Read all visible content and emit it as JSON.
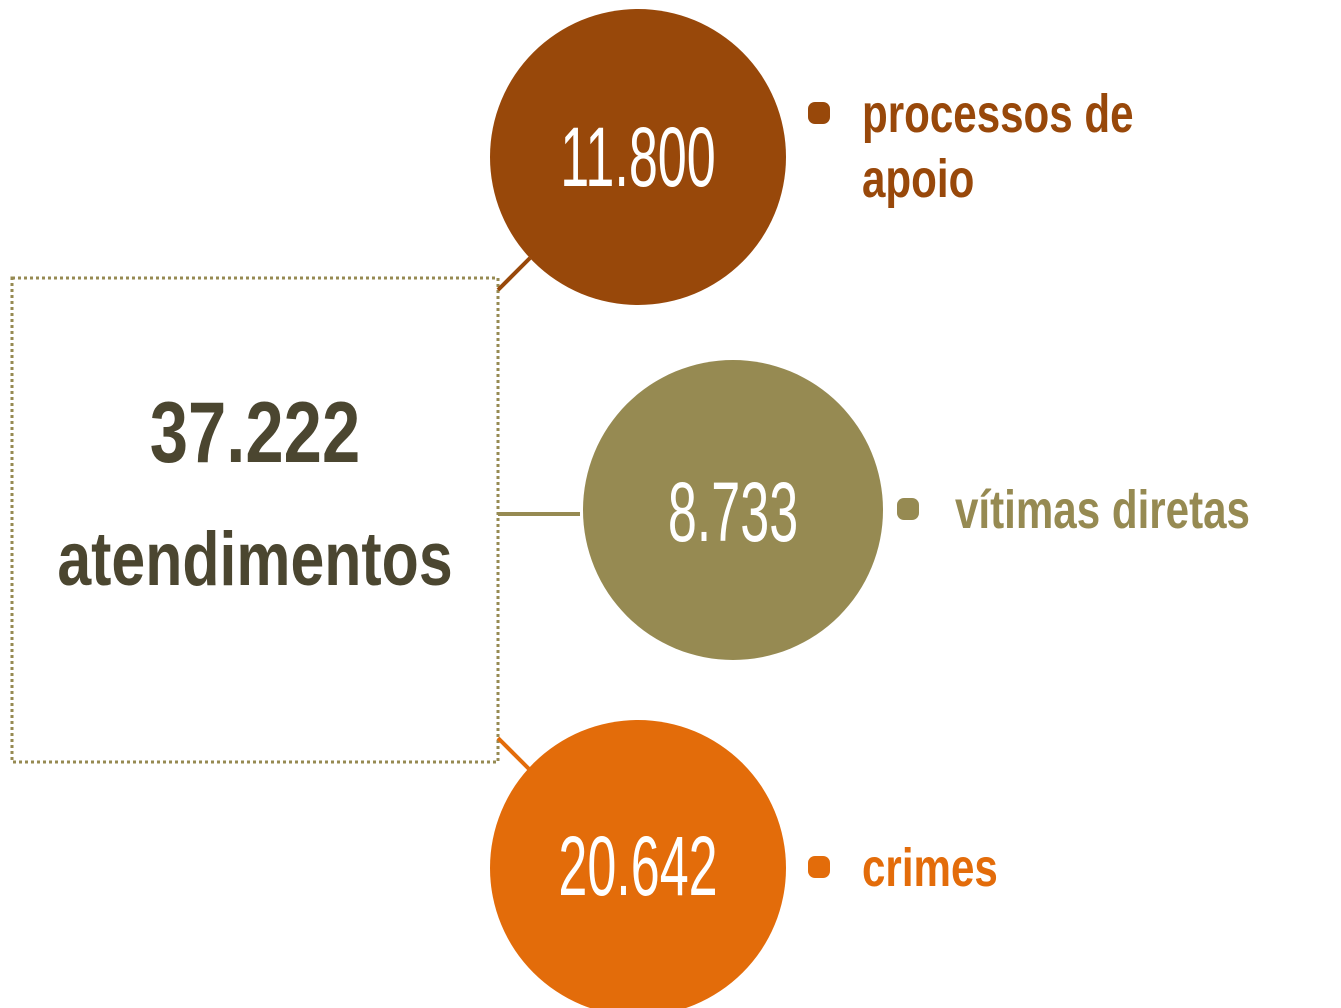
{
  "total": {
    "value": "37.222",
    "label": "atendimentos"
  },
  "nodes": [
    {
      "value": "11.800",
      "label": "processos de apoio"
    },
    {
      "value": "8.733",
      "label": "vítimas diretas"
    },
    {
      "value": "20.642",
      "label": "crimes"
    }
  ]
}
